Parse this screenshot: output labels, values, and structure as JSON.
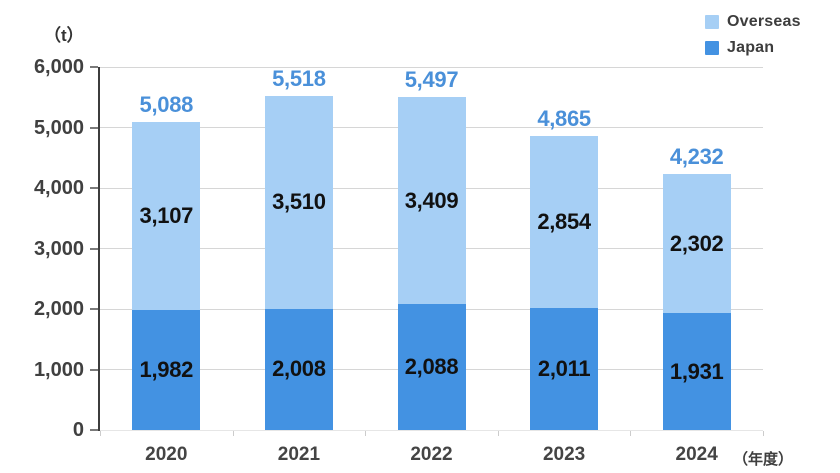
{
  "unit_label": "（t）",
  "xaxis_unit_label": "（年度）",
  "legend": {
    "items": [
      {
        "label": "Overseas",
        "color": "#A6CFF5"
      },
      {
        "label": "Japan",
        "color": "#4392E2"
      }
    ]
  },
  "chart_data": {
    "type": "bar",
    "stacked": true,
    "title": "",
    "ylabel": "（t）",
    "xlabel": "（年度）",
    "categories": [
      "2020",
      "2021",
      "2022",
      "2023",
      "2024"
    ],
    "series": [
      {
        "name": "Japan",
        "color": "#4392E2",
        "values": [
          1982,
          2008,
          2088,
          2011,
          1931
        ]
      },
      {
        "name": "Overseas",
        "color": "#A6CFF5",
        "values": [
          3107,
          3510,
          3409,
          2854,
          2302
        ]
      }
    ],
    "totals": [
      5088,
      5518,
      5497,
      4865,
      4232
    ],
    "value_label_color": "#111111",
    "total_label_color": "#4A90D9",
    "ylim": [
      0,
      6000
    ],
    "ytick_step": 1000,
    "ytick_labels": [
      "0",
      "1,000",
      "2,000",
      "3,000",
      "4,000",
      "5,000",
      "6,000"
    ],
    "grid": true,
    "legend_position": "top-right"
  }
}
